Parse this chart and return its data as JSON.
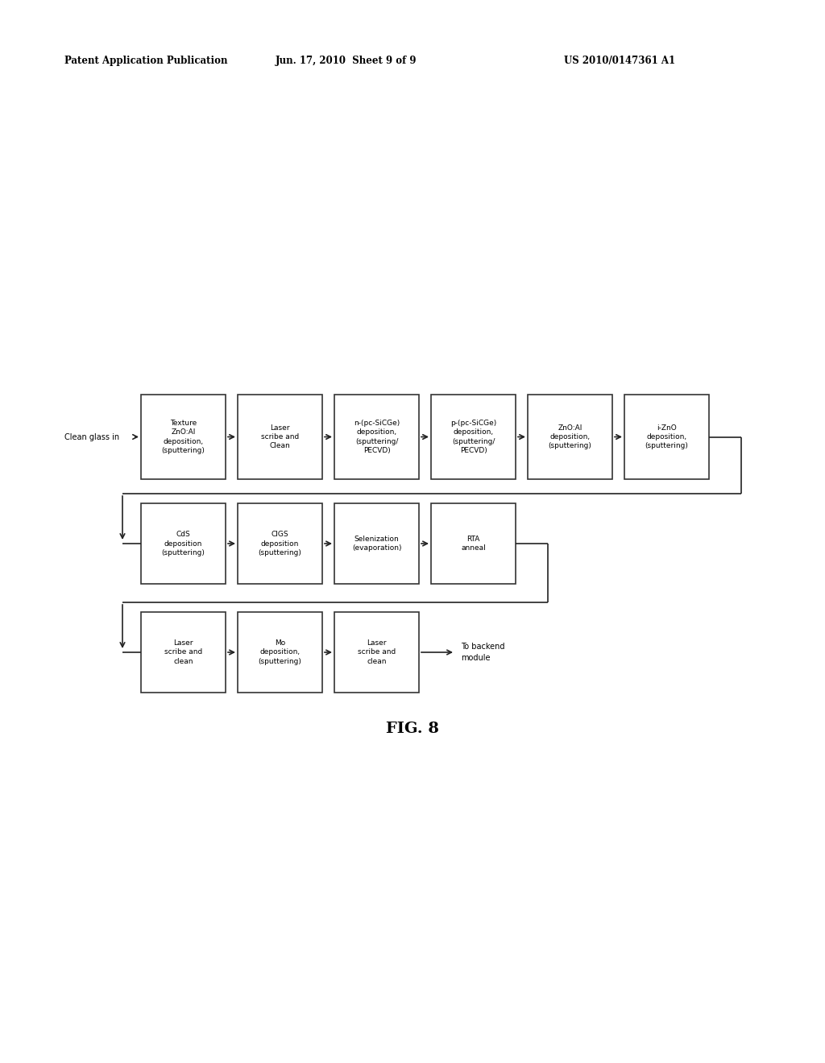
{
  "background_color": "#ffffff",
  "header_left": "Patent Application Publication",
  "header_center": "Jun. 17, 2010  Sheet 9 of 9",
  "header_right": "US 2010/0147361 A1",
  "figure_label": "FIG. 8",
  "row1_input": "Clean glass in",
  "row1_boxes": [
    "Texture\nZnO:Al\ndeposition,\n(sputtering)",
    "Laser\nscribe and\nClean",
    "n-(pc-SiCGe)\ndeposition,\n(sputtering/\nPECVD)",
    "p-(pc-SiCGe)\ndeposition,\n(sputtering/\nPECVD)",
    "ZnO:Al\ndeposition,\n(sputtering)",
    "i-ZnO\ndeposition,\n(sputtering)"
  ],
  "row2_boxes": [
    "CdS\ndeposition\n(sputtering)",
    "CIGS\ndeposition\n(sputtering)",
    "Selenization\n(evaporation)",
    "RTA\nanneal"
  ],
  "row3_boxes": [
    "Laser\nscribe and\nclean",
    "Mo\ndeposition,\n(sputtering)",
    "Laser\nscribe and\nclean"
  ],
  "row3_output": "To backend\nmodule"
}
